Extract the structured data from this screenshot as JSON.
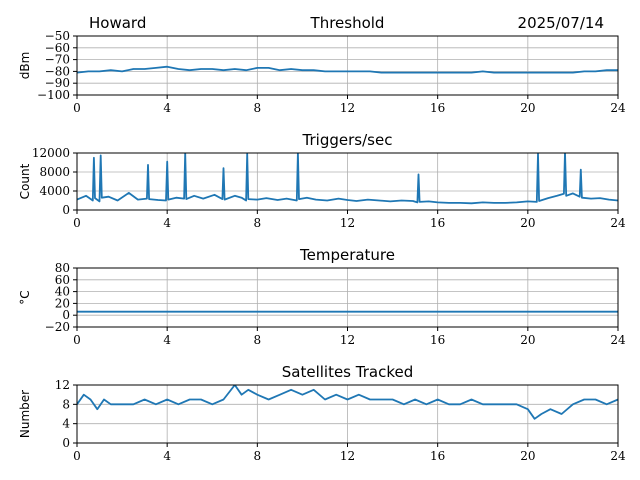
{
  "header": {
    "station": "Howard",
    "date": "2025/07/14"
  },
  "colors": {
    "line": "#1f77b4",
    "grid": "#b0b0b0",
    "axis": "#000000"
  },
  "chart_data": [
    {
      "type": "line",
      "title": "Threshold",
      "ylabel": "dBm",
      "xlabel": "",
      "xlim": [
        0,
        24
      ],
      "ylim": [
        -100,
        -50
      ],
      "xticks": [
        "0",
        "4",
        "8",
        "12",
        "16",
        "20",
        "24"
      ],
      "yticks": [
        "−100",
        "−90",
        "−80",
        "−70",
        "−60",
        "−50"
      ],
      "ytick_values": [
        -100,
        -90,
        -80,
        -70,
        -60,
        -50
      ],
      "grid": true,
      "series": [
        {
          "x": [
            0,
            0.5,
            1,
            1.5,
            2,
            2.5,
            3,
            3.5,
            4,
            4.5,
            5,
            5.5,
            6,
            6.5,
            7,
            7.5,
            8,
            8.5,
            9,
            9.5,
            10,
            10.5,
            11,
            11.5,
            12,
            12.5,
            13,
            13.5,
            14,
            14.5,
            15,
            15.5,
            16,
            16.5,
            17,
            17.5,
            18,
            18.5,
            19,
            19.5,
            20,
            20.5,
            21,
            21.5,
            22,
            22.5,
            23,
            23.5,
            24
          ],
          "values": [
            -81,
            -80,
            -80,
            -79,
            -80,
            -78,
            -78,
            -77,
            -76,
            -78,
            -79,
            -78,
            -78,
            -79,
            -78,
            -79,
            -77,
            -77,
            -79,
            -78,
            -79,
            -79,
            -80,
            -80,
            -80,
            -80,
            -80,
            -81,
            -81,
            -81,
            -81,
            -81,
            -81,
            -81,
            -81,
            -81,
            -80,
            -81,
            -81,
            -81,
            -81,
            -81,
            -81,
            -81,
            -81,
            -80,
            -80,
            -79,
            -79
          ]
        }
      ]
    },
    {
      "type": "line",
      "title": "Triggers/sec",
      "ylabel": "Count",
      "xlabel": "",
      "xlim": [
        0,
        24
      ],
      "ylim": [
        0,
        12000
      ],
      "xticks": [
        "0",
        "4",
        "8",
        "12",
        "16",
        "20",
        "24"
      ],
      "yticks": [
        "0",
        "4000",
        "8000",
        "12000"
      ],
      "ytick_values": [
        0,
        4000,
        8000,
        12000
      ],
      "grid": true,
      "series": [
        {
          "x": [
            0,
            0.4,
            0.7,
            0.75,
            0.8,
            1.0,
            1.05,
            1.1,
            1.4,
            1.8,
            2.3,
            2.7,
            3.1,
            3.15,
            3.2,
            3.6,
            3.95,
            4.0,
            4.05,
            4.4,
            4.75,
            4.8,
            4.85,
            5.2,
            5.6,
            6.1,
            6.45,
            6.5,
            6.55,
            7.0,
            7.3,
            7.5,
            7.55,
            7.6,
            8.0,
            8.4,
            8.9,
            9.3,
            9.75,
            9.8,
            9.85,
            10.2,
            10.6,
            11.1,
            11.6,
            12.0,
            12.4,
            12.9,
            13.4,
            13.9,
            14.4,
            14.9,
            15.1,
            15.15,
            15.2,
            15.6,
            16.0,
            16.5,
            17.0,
            17.5,
            18.0,
            18.5,
            19.0,
            19.5,
            20.0,
            20.4,
            20.45,
            20.5,
            20.9,
            21.3,
            21.6,
            21.65,
            21.7,
            22.0,
            22.3,
            22.35,
            22.4,
            22.8,
            23.2,
            23.6,
            24.0
          ],
          "values": [
            2200,
            3000,
            2000,
            11000,
            2500,
            1800,
            11500,
            2600,
            2800,
            2000,
            3600,
            2200,
            2400,
            9500,
            2300,
            2100,
            2000,
            10200,
            2200,
            2600,
            2400,
            12000,
            2300,
            3000,
            2400,
            3200,
            2300,
            8800,
            2200,
            3000,
            2600,
            2000,
            11800,
            2300,
            2200,
            2500,
            2100,
            2400,
            2000,
            12000,
            2300,
            2600,
            2200,
            2000,
            2400,
            2100,
            1900,
            2200,
            2000,
            1800,
            2000,
            1900,
            1600,
            7500,
            1700,
            1800,
            1600,
            1500,
            1500,
            1400,
            1600,
            1500,
            1500,
            1600,
            1800,
            1700,
            11800,
            1900,
            2500,
            3000,
            3400,
            12200,
            3000,
            3500,
            2800,
            8500,
            2600,
            2400,
            2500,
            2200,
            2000
          ]
        }
      ]
    },
    {
      "type": "line",
      "title": "Temperature",
      "ylabel": "°C",
      "xlabel": "",
      "xlim": [
        0,
        24
      ],
      "ylim": [
        -20,
        80
      ],
      "xticks": [
        "0",
        "4",
        "8",
        "12",
        "16",
        "20",
        "24"
      ],
      "yticks": [
        "−20",
        "0",
        "20",
        "40",
        "60",
        "80"
      ],
      "ytick_values": [
        -20,
        0,
        20,
        40,
        60,
        80
      ],
      "grid": true,
      "series": [
        {
          "x": [
            0,
            24
          ],
          "values": [
            6,
            6
          ]
        }
      ]
    },
    {
      "type": "line",
      "title": "Satellites Tracked",
      "ylabel": "Number",
      "xlabel": "",
      "xlim": [
        0,
        24
      ],
      "ylim": [
        0,
        12
      ],
      "xticks": [
        "0",
        "4",
        "8",
        "12",
        "16",
        "20",
        "24"
      ],
      "yticks": [
        "0",
        "4",
        "8",
        "12"
      ],
      "ytick_values": [
        0,
        4,
        8,
        12
      ],
      "grid": true,
      "series": [
        {
          "x": [
            0,
            0.3,
            0.6,
            0.9,
            1.2,
            1.5,
            2.0,
            2.5,
            3.0,
            3.5,
            4.0,
            4.5,
            5.0,
            5.5,
            6.0,
            6.5,
            7.0,
            7.3,
            7.6,
            8.0,
            8.5,
            9.0,
            9.5,
            10.0,
            10.5,
            11.0,
            11.5,
            12.0,
            12.5,
            13.0,
            13.5,
            14.0,
            14.5,
            15.0,
            15.5,
            16.0,
            16.5,
            17.0,
            17.5,
            18.0,
            18.5,
            19.0,
            19.5,
            20.0,
            20.3,
            20.6,
            21.0,
            21.5,
            22.0,
            22.5,
            23.0,
            23.5,
            24.0
          ],
          "values": [
            8,
            10,
            9,
            7,
            9,
            8,
            8,
            8,
            9,
            8,
            9,
            8,
            9,
            9,
            8,
            9,
            12,
            10,
            11,
            10,
            9,
            10,
            11,
            10,
            11,
            9,
            10,
            9,
            10,
            9,
            9,
            9,
            8,
            9,
            8,
            9,
            8,
            8,
            9,
            8,
            8,
            8,
            8,
            7,
            5,
            6,
            7,
            6,
            8,
            9,
            9,
            8,
            9
          ]
        }
      ]
    }
  ]
}
